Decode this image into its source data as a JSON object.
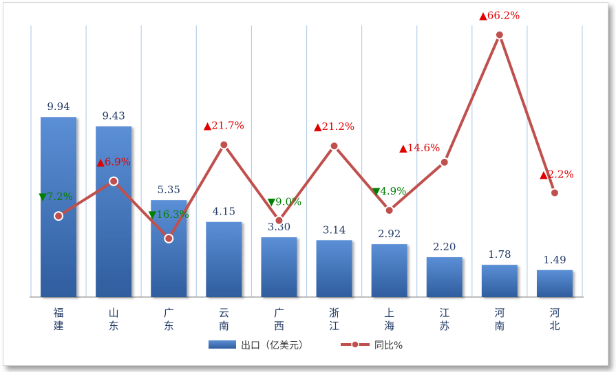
{
  "chart_data": {
    "type": "bar",
    "categories": [
      "福建",
      "山东",
      "广东",
      "云南",
      "广西",
      "浙江",
      "上海",
      "江苏",
      "河南",
      "河北"
    ],
    "series": [
      {
        "name": "出口（亿美元）",
        "type": "bar",
        "axis": "left",
        "values": [
          9.94,
          9.43,
          5.35,
          4.15,
          3.3,
          3.14,
          2.92,
          2.2,
          1.78,
          1.49
        ],
        "labels": [
          "9.94",
          "9.43",
          "5.35",
          "4.15",
          "3.30",
          "3.14",
          "2.92",
          "2.20",
          "1.78",
          "1.49"
        ]
      },
      {
        "name": "同比%",
        "type": "line",
        "axis": "right",
        "values": [
          -7.2,
          6.9,
          -16.3,
          21.7,
          -9.0,
          21.2,
          -4.9,
          14.6,
          66.2,
          2.2
        ],
        "labels": [
          "7.2%",
          "6.9%",
          "16.3%",
          "21.7%",
          "9.0%",
          "21.2%",
          "4.9%",
          "14.6%",
          "66.2%",
          "2.2%"
        ]
      }
    ],
    "ylim_left": [
      0,
      15
    ],
    "ylim_right": [
      -40,
      70
    ],
    "grid": "vertical",
    "legend_position": "bottom",
    "up_marker": "▲",
    "down_marker": "▼"
  },
  "colors": {
    "bar_top": "#5b8fd6",
    "bar_bottom": "#2f5d9e",
    "line": "#c0504d",
    "marker_fill": "#c0504d",
    "up": "#e00000",
    "down": "#008000",
    "grid": "#b8d0e8",
    "axis": "#a8a8a8",
    "text": "#1f3864"
  }
}
